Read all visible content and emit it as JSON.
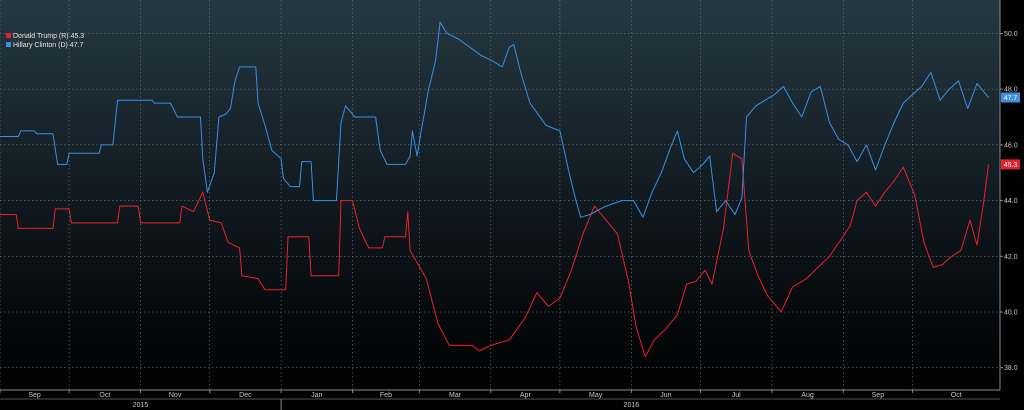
{
  "chart_data": {
    "type": "line",
    "title": "",
    "xlabel": "",
    "ylabel": "",
    "ylim": [
      37.2,
      51.2
    ],
    "xlim": [
      "2015-09-01",
      "2016-11-08"
    ],
    "y_ticks": [
      {
        "value": 38,
        "label": "38.0"
      },
      {
        "value": 40,
        "label": "40.0"
      },
      {
        "value": 42,
        "label": "42.0"
      },
      {
        "value": 44,
        "label": "44.0"
      },
      {
        "value": 46,
        "label": "46.0"
      },
      {
        "value": 48,
        "label": "48.0"
      },
      {
        "value": 50,
        "label": "50.0"
      }
    ],
    "x_ticks": [
      {
        "date": "2015-09-01",
        "label": "Sep"
      },
      {
        "date": "2015-10-01",
        "label": "Oct"
      },
      {
        "date": "2015-11-01",
        "label": "Nov"
      },
      {
        "date": "2015-12-01",
        "label": "Dec"
      },
      {
        "date": "2016-01-01",
        "label": "Jan"
      },
      {
        "date": "2016-02-01",
        "label": "Feb"
      },
      {
        "date": "2016-03-01",
        "label": "Mar"
      },
      {
        "date": "2016-04-01",
        "label": "Apr"
      },
      {
        "date": "2016-05-01",
        "label": "May"
      },
      {
        "date": "2016-06-01",
        "label": "Jun"
      },
      {
        "date": "2016-07-01",
        "label": "Jul"
      },
      {
        "date": "2016-08-01",
        "label": "Aug"
      },
      {
        "date": "2016-09-01",
        "label": "Sep"
      },
      {
        "date": "2016-10-01",
        "label": "Oct"
      }
    ],
    "year_labels": [
      {
        "date": "2015-11-01",
        "label": "2015"
      },
      {
        "date": "2016-06-01",
        "label": "2016"
      }
    ],
    "year_boundary": "2016-01-01",
    "grid": true,
    "legend_position": "top-left",
    "series": [
      {
        "name": "Donald Trump (R)",
        "last_value_label": "45.3",
        "color": "#e8202e",
        "points": [
          [
            "2015-09-01",
            43.5
          ],
          [
            "2015-09-08",
            43.5
          ],
          [
            "2015-09-09",
            43.0
          ],
          [
            "2015-09-24",
            43.0
          ],
          [
            "2015-09-25",
            43.7
          ],
          [
            "2015-10-01",
            43.7
          ],
          [
            "2015-10-02",
            43.2
          ],
          [
            "2015-10-22",
            43.2
          ],
          [
            "2015-10-23",
            43.8
          ],
          [
            "2015-10-31",
            43.8
          ],
          [
            "2015-11-01",
            43.2
          ],
          [
            "2015-11-18",
            43.2
          ],
          [
            "2015-11-19",
            43.8
          ],
          [
            "2015-11-24",
            43.6
          ],
          [
            "2015-11-28",
            44.3
          ],
          [
            "2015-12-01",
            43.3
          ],
          [
            "2015-12-06",
            43.2
          ],
          [
            "2015-12-09",
            42.5
          ],
          [
            "2015-12-14",
            42.3
          ],
          [
            "2015-12-15",
            41.3
          ],
          [
            "2015-12-22",
            41.2
          ],
          [
            "2015-12-25",
            40.8
          ],
          [
            "2016-01-03",
            40.8
          ],
          [
            "2016-01-04",
            42.7
          ],
          [
            "2016-01-13",
            42.7
          ],
          [
            "2016-01-14",
            41.3
          ],
          [
            "2016-01-26",
            41.3
          ],
          [
            "2016-01-27",
            44.0
          ],
          [
            "2016-02-01",
            44.0
          ],
          [
            "2016-02-04",
            43.0
          ],
          [
            "2016-02-08",
            42.3
          ],
          [
            "2016-02-14",
            42.3
          ],
          [
            "2016-02-15",
            42.7
          ],
          [
            "2016-02-24",
            42.7
          ],
          [
            "2016-02-25",
            43.6
          ],
          [
            "2016-02-26",
            42.2
          ],
          [
            "2016-03-04",
            41.2
          ],
          [
            "2016-03-09",
            39.6
          ],
          [
            "2016-03-14",
            38.8
          ],
          [
            "2016-03-24",
            38.8
          ],
          [
            "2016-03-27",
            38.6
          ],
          [
            "2016-04-01",
            38.8
          ],
          [
            "2016-04-09",
            39.0
          ],
          [
            "2016-04-16",
            39.8
          ],
          [
            "2016-04-21",
            40.7
          ],
          [
            "2016-04-26",
            40.2
          ],
          [
            "2016-05-01",
            40.5
          ],
          [
            "2016-05-06",
            41.5
          ],
          [
            "2016-05-11",
            42.8
          ],
          [
            "2016-05-16",
            43.8
          ],
          [
            "2016-05-21",
            43.3
          ],
          [
            "2016-05-26",
            42.8
          ],
          [
            "2016-05-31",
            41.0
          ],
          [
            "2016-06-03",
            39.5
          ],
          [
            "2016-06-07",
            38.4
          ],
          [
            "2016-06-11",
            39.0
          ],
          [
            "2016-06-16",
            39.4
          ],
          [
            "2016-06-21",
            39.9
          ],
          [
            "2016-06-25",
            41.0
          ],
          [
            "2016-06-29",
            41.1
          ],
          [
            "2016-07-03",
            41.5
          ],
          [
            "2016-07-06",
            41.0
          ],
          [
            "2016-07-11",
            43.0
          ],
          [
            "2016-07-15",
            45.7
          ],
          [
            "2016-07-19",
            45.5
          ],
          [
            "2016-07-22",
            42.2
          ],
          [
            "2016-07-26",
            41.3
          ],
          [
            "2016-07-30",
            40.6
          ],
          [
            "2016-08-05",
            40.0
          ],
          [
            "2016-08-10",
            40.9
          ],
          [
            "2016-08-16",
            41.2
          ],
          [
            "2016-08-21",
            41.6
          ],
          [
            "2016-08-26",
            42.0
          ],
          [
            "2016-08-31",
            42.6
          ],
          [
            "2016-09-04",
            43.1
          ],
          [
            "2016-09-07",
            44.0
          ],
          [
            "2016-09-11",
            44.3
          ],
          [
            "2016-09-15",
            43.8
          ],
          [
            "2016-09-19",
            44.3
          ],
          [
            "2016-09-23",
            44.7
          ],
          [
            "2016-09-27",
            45.2
          ],
          [
            "2016-10-02",
            44.2
          ],
          [
            "2016-10-06",
            42.5
          ],
          [
            "2016-10-10",
            41.6
          ],
          [
            "2016-10-14",
            41.7
          ],
          [
            "2016-10-18",
            42.0
          ],
          [
            "2016-10-22",
            42.2
          ],
          [
            "2016-10-26",
            43.3
          ],
          [
            "2016-10-29",
            42.4
          ],
          [
            "2016-11-01",
            44.0
          ],
          [
            "2016-11-03",
            45.3
          ]
        ]
      },
      {
        "name": "Hillary Clinton (D)",
        "last_value_label": "47.7",
        "color": "#3d8fe0",
        "points": [
          [
            "2015-09-01",
            46.3
          ],
          [
            "2015-09-09",
            46.3
          ],
          [
            "2015-09-10",
            46.5
          ],
          [
            "2015-09-16",
            46.5
          ],
          [
            "2015-09-17",
            46.4
          ],
          [
            "2015-09-24",
            46.4
          ],
          [
            "2015-09-26",
            45.3
          ],
          [
            "2015-09-30",
            45.3
          ],
          [
            "2015-10-01",
            45.7
          ],
          [
            "2015-10-14",
            45.7
          ],
          [
            "2015-10-15",
            46.0
          ],
          [
            "2015-10-20",
            46.0
          ],
          [
            "2015-10-22",
            47.6
          ],
          [
            "2015-11-06",
            47.6
          ],
          [
            "2015-11-07",
            47.5
          ],
          [
            "2015-11-14",
            47.5
          ],
          [
            "2015-11-17",
            47.0
          ],
          [
            "2015-11-27",
            47.0
          ],
          [
            "2015-11-28",
            45.5
          ],
          [
            "2015-11-30",
            44.3
          ],
          [
            "2015-12-03",
            45.0
          ],
          [
            "2015-12-05",
            47.0
          ],
          [
            "2015-12-08",
            47.1
          ],
          [
            "2015-12-10",
            47.3
          ],
          [
            "2015-12-12",
            48.3
          ],
          [
            "2015-12-14",
            48.8
          ],
          [
            "2015-12-21",
            48.8
          ],
          [
            "2015-12-22",
            47.5
          ],
          [
            "2015-12-25",
            46.7
          ],
          [
            "2015-12-28",
            45.8
          ],
          [
            "2016-01-01",
            45.5
          ],
          [
            "2016-01-02",
            44.8
          ],
          [
            "2016-01-05",
            44.5
          ],
          [
            "2016-01-09",
            44.5
          ],
          [
            "2016-01-10",
            45.4
          ],
          [
            "2016-01-14",
            45.4
          ],
          [
            "2016-01-15",
            44.0
          ],
          [
            "2016-01-25",
            44.0
          ],
          [
            "2016-01-27",
            46.8
          ],
          [
            "2016-01-29",
            47.4
          ],
          [
            "2016-02-02",
            47.0
          ],
          [
            "2016-02-11",
            47.0
          ],
          [
            "2016-02-13",
            45.8
          ],
          [
            "2016-02-16",
            45.3
          ],
          [
            "2016-02-24",
            45.3
          ],
          [
            "2016-02-26",
            45.6
          ],
          [
            "2016-02-27",
            46.5
          ],
          [
            "2016-02-29",
            45.6
          ],
          [
            "2016-03-02",
            46.6
          ],
          [
            "2016-03-05",
            48.0
          ],
          [
            "2016-03-08",
            49.0
          ],
          [
            "2016-03-10",
            50.4
          ],
          [
            "2016-03-13",
            50.0
          ],
          [
            "2016-03-18",
            49.8
          ],
          [
            "2016-03-23",
            49.5
          ],
          [
            "2016-03-28",
            49.2
          ],
          [
            "2016-04-02",
            49.0
          ],
          [
            "2016-04-06",
            48.8
          ],
          [
            "2016-04-09",
            49.5
          ],
          [
            "2016-04-11",
            49.6
          ],
          [
            "2016-04-14",
            48.6
          ],
          [
            "2016-04-18",
            47.5
          ],
          [
            "2016-04-25",
            46.7
          ],
          [
            "2016-05-01",
            46.5
          ],
          [
            "2016-05-05",
            45.0
          ],
          [
            "2016-05-08",
            44.0
          ],
          [
            "2016-05-10",
            43.4
          ],
          [
            "2016-05-14",
            43.5
          ],
          [
            "2016-05-21",
            43.8
          ],
          [
            "2016-05-28",
            44.0
          ],
          [
            "2016-06-02",
            44.0
          ],
          [
            "2016-06-06",
            43.4
          ],
          [
            "2016-06-10",
            44.3
          ],
          [
            "2016-06-14",
            45.0
          ],
          [
            "2016-06-18",
            45.9
          ],
          [
            "2016-06-21",
            46.5
          ],
          [
            "2016-06-24",
            45.5
          ],
          [
            "2016-06-28",
            45.0
          ],
          [
            "2016-07-02",
            45.3
          ],
          [
            "2016-07-05",
            45.6
          ],
          [
            "2016-07-08",
            43.6
          ],
          [
            "2016-07-12",
            44.0
          ],
          [
            "2016-07-16",
            43.5
          ],
          [
            "2016-07-19",
            44.1
          ],
          [
            "2016-07-21",
            47.0
          ],
          [
            "2016-07-25",
            47.4
          ],
          [
            "2016-07-29",
            47.6
          ],
          [
            "2016-08-02",
            47.8
          ],
          [
            "2016-08-06",
            48.1
          ],
          [
            "2016-08-10",
            47.5
          ],
          [
            "2016-08-14",
            47.0
          ],
          [
            "2016-08-18",
            47.9
          ],
          [
            "2016-08-22",
            48.1
          ],
          [
            "2016-08-26",
            46.8
          ],
          [
            "2016-08-30",
            46.2
          ],
          [
            "2016-09-03",
            46.0
          ],
          [
            "2016-09-07",
            45.4
          ],
          [
            "2016-09-11",
            46.0
          ],
          [
            "2016-09-15",
            45.1
          ],
          [
            "2016-09-19",
            46.0
          ],
          [
            "2016-09-23",
            46.8
          ],
          [
            "2016-09-27",
            47.5
          ],
          [
            "2016-10-01",
            47.8
          ],
          [
            "2016-10-05",
            48.1
          ],
          [
            "2016-10-09",
            48.6
          ],
          [
            "2016-10-13",
            47.6
          ],
          [
            "2016-10-17",
            48.0
          ],
          [
            "2016-10-21",
            48.3
          ],
          [
            "2016-10-25",
            47.3
          ],
          [
            "2016-10-29",
            48.2
          ],
          [
            "2016-11-01",
            47.9
          ],
          [
            "2016-11-03",
            47.7
          ]
        ]
      }
    ]
  }
}
